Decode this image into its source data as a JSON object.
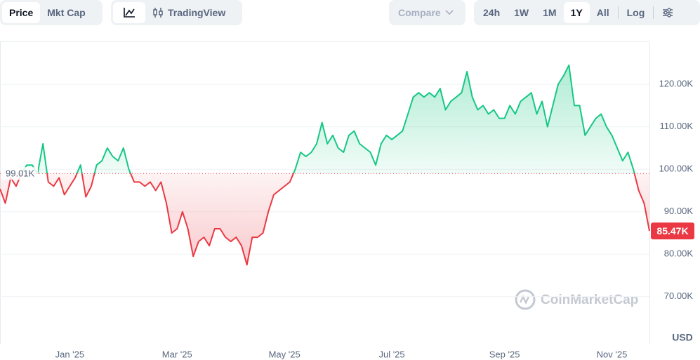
{
  "toolbar": {
    "views": [
      "Price",
      "Mkt Cap"
    ],
    "chart_tool": "TradingView",
    "compare": "Compare",
    "ranges": [
      "24h",
      "1W",
      "1M",
      "1Y",
      "All"
    ],
    "log": "Log"
  },
  "watermark": "CoinMarketCap",
  "chart_data": {
    "type": "line",
    "categories": [
      null,
      null,
      null,
      null,
      null,
      null,
      null,
      null,
      null,
      null,
      null,
      null,
      null,
      "Jan '25",
      null,
      null,
      null,
      null,
      null,
      null,
      null,
      null,
      null,
      null,
      null,
      null,
      null,
      null,
      null,
      null,
      null,
      null,
      null,
      "Mar '25",
      null,
      null,
      null,
      null,
      null,
      null,
      null,
      null,
      null,
      null,
      null,
      null,
      null,
      null,
      null,
      null,
      null,
      null,
      null,
      "May '25",
      null,
      null,
      null,
      null,
      null,
      null,
      null,
      null,
      null,
      null,
      null,
      null,
      null,
      null,
      null,
      null,
      null,
      null,
      null,
      "Jul '25",
      null,
      null,
      null,
      null,
      null,
      null,
      null,
      null,
      null,
      null,
      null,
      null,
      null,
      null,
      null,
      null,
      null,
      null,
      null,
      null,
      "Sep '25",
      null,
      null,
      null,
      null,
      null,
      null,
      null,
      null,
      null,
      null,
      null,
      null,
      null,
      null,
      null,
      null,
      null,
      null,
      null,
      "Nov '25",
      null,
      null,
      null,
      null,
      null,
      null,
      null
    ],
    "values": [
      95400,
      92000,
      98000,
      96000,
      99000,
      101000,
      101000,
      99000,
      106000,
      97000,
      96000,
      98000,
      94000,
      96000,
      98000,
      101000,
      93500,
      96000,
      101000,
      102000,
      105000,
      103000,
      102000,
      105000,
      100000,
      97000,
      97000,
      96000,
      97000,
      95000,
      97000,
      92000,
      85000,
      86000,
      90000,
      86000,
      79500,
      83000,
      84000,
      82000,
      86000,
      86000,
      84000,
      83000,
      84000,
      82000,
      77500,
      84000,
      84000,
      85000,
      90000,
      94000,
      95000,
      96000,
      97000,
      100000,
      104000,
      103000,
      104000,
      106000,
      111000,
      106000,
      108000,
      105000,
      104000,
      108000,
      109000,
      106000,
      105000,
      104000,
      101000,
      106000,
      108000,
      107000,
      108000,
      109000,
      113000,
      117000,
      118000,
      117000,
      118000,
      117000,
      119000,
      114000,
      116000,
      117000,
      118000,
      123000,
      117000,
      114000,
      115000,
      113000,
      114000,
      112000,
      112000,
      115000,
      113000,
      116000,
      117000,
      118000,
      113000,
      116000,
      110000,
      115000,
      120000,
      122000,
      124500,
      115000,
      115000,
      108000,
      110000,
      112000,
      113000,
      110000,
      108000,
      105000,
      102000,
      104000,
      100000,
      95000,
      92000,
      85470
    ],
    "current_label": "85.47K",
    "baseline": 99010,
    "baseline_label": "99.01K",
    "color_up": "#16c784",
    "color_down": "#ea3943",
    "ylim": [
      58900,
      130100
    ],
    "yticks": [
      {
        "value": 70000,
        "label": "70.00K"
      },
      {
        "value": 80000,
        "label": "80.00K"
      },
      {
        "value": 90000,
        "label": "90.00K"
      },
      {
        "value": 100000,
        "label": "100.00K"
      },
      {
        "value": 110000,
        "label": "110.00K"
      },
      {
        "value": 120000,
        "label": "120.00K"
      }
    ],
    "y_unit": "USD",
    "grid": true
  }
}
